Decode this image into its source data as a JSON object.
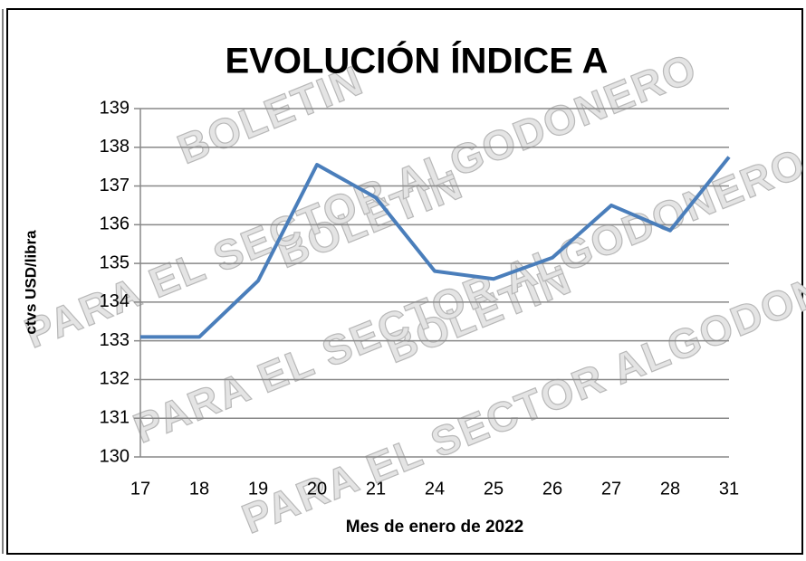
{
  "chart_data": {
    "type": "line",
    "title": "EVOLUCIÓN ÍNDICE A",
    "x_label": "Mes de enero de 2022",
    "y_label": "ctvs USD/libra",
    "watermarks": [
      "BOLETIN",
      "PARA EL SECTOR ALGODONERO"
    ],
    "categories": [
      "17",
      "18",
      "19",
      "20",
      "21",
      "24",
      "25",
      "26",
      "27",
      "28",
      "31"
    ],
    "series": [
      {
        "name": "Índice A",
        "color": "#4a7ebb",
        "values": [
          133.1,
          133.1,
          134.55,
          137.55,
          136.7,
          134.8,
          134.6,
          135.15,
          136.5,
          135.85,
          137.75
        ]
      }
    ],
    "ylim": [
      130,
      139
    ],
    "yticks": [
      130,
      131,
      132,
      133,
      134,
      135,
      136,
      137,
      138,
      139
    ],
    "grid": true
  }
}
